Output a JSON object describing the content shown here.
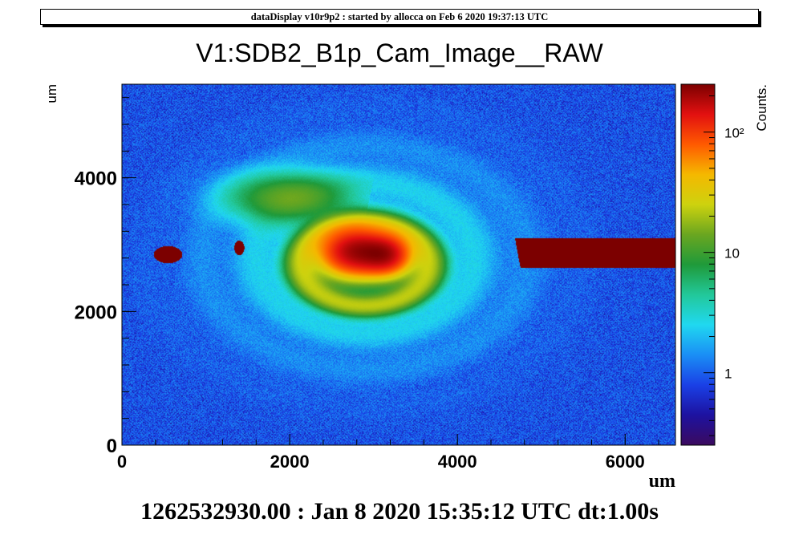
{
  "banner": "dataDisplay v10r9p2 : started by allocca on Feb  6 2020 19:37:13 UTC",
  "footer": "1262532930.00 : Jan  8 2020 15:35:12 UTC dt:1.00s",
  "chart_data": {
    "type": "heatmap",
    "title": "V1:SDB2_B1p_Cam_Image__RAW",
    "xlabel": "um",
    "ylabel": "um",
    "xlim": [
      0,
      6600
    ],
    "ylim": [
      0,
      5400
    ],
    "x_ticks": [
      "0",
      "2000",
      "4000",
      "6000"
    ],
    "x_tick_values": [
      0,
      2000,
      4000,
      6000
    ],
    "y_ticks": [
      "0",
      "2000",
      "4000"
    ],
    "y_tick_values": [
      0,
      2000,
      4000
    ],
    "z_scale": "log",
    "z_label": "Counts.",
    "z_range": [
      0.25,
      250
    ],
    "z_ticks": [
      {
        "value": 1,
        "label": "1"
      },
      {
        "value": 10,
        "label": "10"
      },
      {
        "value": 100,
        "label": "10²"
      }
    ],
    "background_level": 0.8,
    "features": [
      {
        "name": "core",
        "x": 2800,
        "y": 2900,
        "peak": 200
      },
      {
        "name": "inner-ring",
        "x": 2900,
        "y": 2700,
        "peak": 20
      },
      {
        "name": "upper-left-lobe",
        "x": 2000,
        "y": 3700,
        "peak": 12
      },
      {
        "name": "left-spot",
        "x": 550,
        "y": 2850,
        "peak": 300
      },
      {
        "name": "right-band",
        "x_range": [
          4700,
          6600
        ],
        "y_range": [
          2650,
          3100
        ],
        "peak": 300
      }
    ],
    "colormap": [
      "#3b0a5e",
      "#1d12a0",
      "#1a40e6",
      "#1a8ef5",
      "#20d8f0",
      "#22c89a",
      "#1f9a3a",
      "#6aa620",
      "#cdd20e",
      "#f5b800",
      "#ff5a00",
      "#e21010",
      "#7c0000"
    ],
    "grid": false
  }
}
